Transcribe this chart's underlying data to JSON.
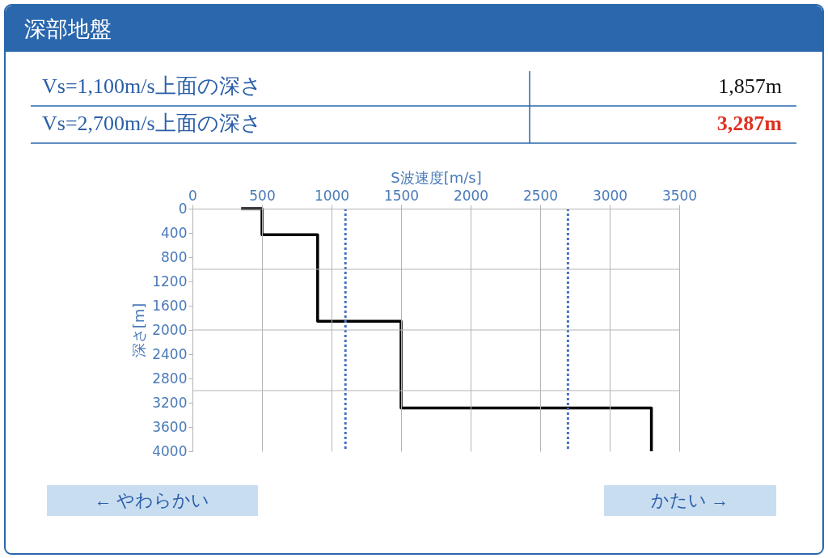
{
  "chart_data": {
    "type": "line",
    "title": "深部地盤",
    "xlabel": "S波速度[m/s]",
    "ylabel": "深さ[m]",
    "series": [
      {
        "color": "#000000",
        "x": [
          350,
          500,
          500,
          900,
          900,
          1500,
          1500,
          3300,
          3300
        ],
        "values": [
          0,
          0,
          430,
          430,
          1857,
          1857,
          3287,
          3287,
          4000
        ]
      }
    ],
    "xlim": [
      0,
      3500
    ],
    "xticks": [
      0,
      500,
      1000,
      1500,
      2000,
      2500,
      3000,
      3500
    ],
    "ylim": [
      4000,
      0
    ],
    "yticks": [
      0,
      400,
      800,
      1200,
      1600,
      2000,
      2400,
      2800,
      3200,
      3600,
      4000
    ],
    "ref_lines": [
      {
        "axis": "x",
        "value": 1100,
        "color": "#4472c4",
        "line_style": "dotted"
      },
      {
        "axis": "x",
        "value": 2700,
        "color": "#4472c4",
        "line_style": "dotted"
      },
      {
        "axis": "y",
        "value": 1000,
        "color": "#b4b4b4",
        "line_style": "solid"
      },
      {
        "axis": "y",
        "value": 2000,
        "color": "#b4b4b4",
        "line_style": "solid"
      },
      {
        "axis": "y",
        "value": 3000,
        "color": "#b4b4b4",
        "line_style": "solid"
      }
    ],
    "grid": "x",
    "marker": "none",
    "line_style": "solid",
    "annotations": [
      "Vs=1,100m/s上面の深さ",
      "1,857m",
      "Vs=2,700m/s上面の深さ",
      "3,287m",
      "← やわらかい",
      "かたい →"
    ]
  }
}
